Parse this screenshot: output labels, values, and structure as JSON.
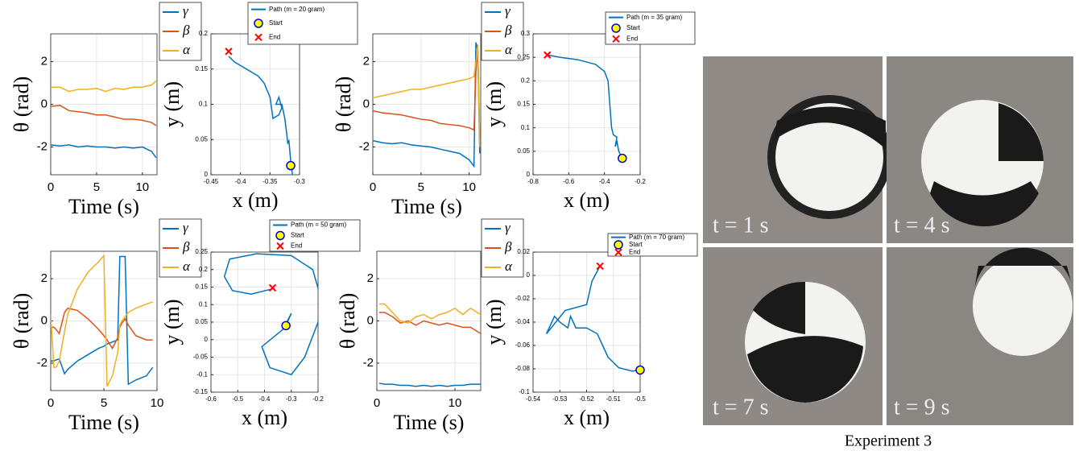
{
  "chart_data": [
    {
      "type": "line",
      "xlabel": "Time (s)",
      "ylabel": "θ (rad)",
      "xlim": [
        0,
        11.6
      ],
      "ylim": [
        -3.3,
        3.3
      ],
      "xticks": [
        0,
        5,
        10
      ],
      "yticks": [
        -2,
        0,
        2
      ],
      "grid": true,
      "x": [
        0,
        1,
        2,
        3,
        4,
        5,
        6,
        7,
        8,
        9,
        10,
        11,
        11.5
      ],
      "series": [
        {
          "name": "γ",
          "color": "#0072BD",
          "values": [
            -1.9,
            -1.95,
            -1.9,
            -2.0,
            -1.95,
            -2.0,
            -2.0,
            -2.05,
            -2.0,
            -2.05,
            -2.0,
            -2.2,
            -2.5
          ]
        },
        {
          "name": "β",
          "color": "#D95319",
          "values": [
            -0.1,
            -0.05,
            -0.3,
            -0.35,
            -0.4,
            -0.5,
            -0.5,
            -0.6,
            -0.7,
            -0.7,
            -0.75,
            -0.85,
            -1.0
          ]
        },
        {
          "name": "α",
          "color": "#EDB120",
          "values": [
            0.8,
            0.8,
            0.6,
            0.7,
            0.7,
            0.75,
            0.6,
            0.75,
            0.7,
            0.8,
            0.8,
            0.9,
            1.1
          ]
        }
      ]
    },
    {
      "type": "line",
      "xlabel": "x (m)",
      "ylabel": "y (m)",
      "xlim": [
        -0.45,
        -0.3
      ],
      "ylim": [
        0,
        0.2
      ],
      "xticks": [
        -0.45,
        -0.4,
        -0.35,
        -0.3
      ],
      "yticks": [
        0,
        0.05,
        0.1,
        0.15,
        0.2
      ],
      "grid": true,
      "series": [
        {
          "name": "Path (m = 20 gram)",
          "color": "#0072BD",
          "marker": "none",
          "x": [
            -0.312,
            -0.315,
            -0.318,
            -0.32,
            -0.322,
            -0.325,
            -0.33,
            -0.34,
            -0.335,
            -0.33,
            -0.335,
            -0.345,
            -0.35,
            -0.36,
            -0.37,
            -0.39,
            -0.41,
            -0.42
          ],
          "values": [
            0.0,
            0.02,
            0.048,
            0.045,
            0.06,
            0.08,
            0.1,
            0.1,
            0.11,
            0.095,
            0.085,
            0.08,
            0.11,
            0.13,
            0.14,
            0.15,
            0.16,
            0.168
          ]
        },
        {
          "name": "Start",
          "color": "#FFFF00",
          "edgecolor": "#0000CD",
          "marker": "circle",
          "x": [
            -0.315
          ],
          "values": [
            0.013
          ]
        },
        {
          "name": "End",
          "color": "#FF0000",
          "marker": "x",
          "x": [
            -0.42
          ],
          "values": [
            0.175
          ]
        }
      ]
    },
    {
      "type": "line",
      "xlabel": "Time (s)",
      "ylabel": "θ (rad)",
      "xlim": [
        0,
        11.2
      ],
      "ylim": [
        -3.3,
        3.3
      ],
      "xticks": [
        0,
        5,
        10
      ],
      "yticks": [
        -2,
        0,
        2
      ],
      "grid": true,
      "x": [
        0,
        1,
        2,
        3,
        4,
        5,
        6,
        7,
        8,
        9,
        10,
        10.5,
        10.7,
        10.9,
        11.1
      ],
      "series": [
        {
          "name": "γ",
          "color": "#0072BD",
          "values": [
            -1.7,
            -1.8,
            -1.85,
            -1.8,
            -1.9,
            -1.95,
            -2.0,
            -2.1,
            -2.2,
            -2.3,
            -2.6,
            -2.9,
            2.9,
            2.5,
            -2.3
          ]
        },
        {
          "name": "β",
          "color": "#D95319",
          "values": [
            -0.3,
            -0.4,
            -0.45,
            -0.5,
            -0.6,
            -0.7,
            -0.75,
            -0.9,
            -0.95,
            -1.0,
            -1.1,
            -1.2,
            1.5,
            2.5,
            -1.5
          ]
        },
        {
          "name": "α",
          "color": "#EDB120",
          "values": [
            0.3,
            0.4,
            0.5,
            0.6,
            0.7,
            0.7,
            0.8,
            0.9,
            1.0,
            1.1,
            1.2,
            1.3,
            2.0,
            2.8,
            -2.0
          ]
        }
      ]
    },
    {
      "type": "line",
      "xlabel": "x (m)",
      "ylabel": "y (m)",
      "xlim": [
        -0.8,
        -0.2
      ],
      "ylim": [
        0,
        0.3
      ],
      "xticks": [
        -0.8,
        -0.6,
        -0.4,
        -0.2
      ],
      "yticks": [
        0,
        0.05,
        0.1,
        0.15,
        0.2,
        0.25,
        0.3
      ],
      "grid": true,
      "series": [
        {
          "name": "Path (m = 35 gram)",
          "color": "#0072BD",
          "marker": "none",
          "x": [
            -0.3,
            -0.32,
            -0.33,
            -0.34,
            -0.33,
            -0.35,
            -0.36,
            -0.37,
            -0.38,
            -0.4,
            -0.45,
            -0.55,
            -0.65,
            -0.72
          ],
          "values": [
            0.035,
            0.05,
            0.07,
            0.06,
            0.08,
            0.085,
            0.1,
            0.15,
            0.2,
            0.22,
            0.235,
            0.245,
            0.25,
            0.255
          ]
        },
        {
          "name": "Start",
          "color": "#FFFF00",
          "edgecolor": "#0000CD",
          "marker": "circle",
          "x": [
            -0.3
          ],
          "values": [
            0.035
          ]
        },
        {
          "name": "End",
          "color": "#FF0000",
          "marker": "x",
          "x": [
            -0.72
          ],
          "values": [
            0.255
          ]
        }
      ]
    },
    {
      "type": "line",
      "xlabel": "Time (s)",
      "ylabel": "θ (rad)",
      "xlim": [
        0,
        10
      ],
      "ylim": [
        -3.3,
        3.3
      ],
      "xticks": [
        0,
        5,
        10
      ],
      "yticks": [
        -2,
        0,
        2
      ],
      "grid": true,
      "x": [
        0,
        0.3,
        0.5,
        0.8,
        1.3,
        1.6,
        2.5,
        3.5,
        4.5,
        5.0,
        5.3,
        5.8,
        6.3,
        6.5,
        6.7,
        7.0,
        7.3,
        8,
        9,
        9.6
      ],
      "series": [
        {
          "name": "γ",
          "color": "#0072BD",
          "values": [
            -1.9,
            -1.9,
            -1.85,
            -1.8,
            -2.5,
            -2.3,
            -1.9,
            -1.6,
            -1.3,
            -1.2,
            -1.1,
            -1.0,
            -0.9,
            3.05,
            3.05,
            3.05,
            -3.0,
            -2.8,
            -2.6,
            -2.2
          ]
        },
        {
          "name": "β",
          "color": "#D95319",
          "values": [
            -0.3,
            -0.3,
            -0.4,
            -0.6,
            0.4,
            0.6,
            0.5,
            0.1,
            -0.4,
            -0.7,
            -0.9,
            -1.3,
            -0.8,
            -0.3,
            -0.1,
            0.1,
            -0.2,
            -0.7,
            -0.9,
            -0.9
          ]
        },
        {
          "name": "α",
          "color": "#EDB120",
          "values": [
            0.3,
            -2.2,
            -2.2,
            -1.9,
            -0.5,
            0.3,
            1.5,
            2.3,
            2.8,
            3.1,
            -3.1,
            -2.6,
            -1.5,
            -0.2,
            0.0,
            0.2,
            0.4,
            0.6,
            0.8,
            0.9
          ]
        }
      ]
    },
    {
      "type": "line",
      "xlabel": "x (m)",
      "ylabel": "y (m)",
      "xlim": [
        -0.6,
        -0.2
      ],
      "ylim": [
        -0.15,
        0.25
      ],
      "xticks": [
        -0.6,
        -0.5,
        -0.4,
        -0.3,
        -0.2
      ],
      "yticks": [
        -0.15,
        -0.1,
        -0.05,
        0,
        0.05,
        0.1,
        0.15,
        0.2,
        0.25
      ],
      "grid": true,
      "series": [
        {
          "name": "Path (m = 50 gram)",
          "color": "#0072BD",
          "marker": "none",
          "x": [
            -0.32,
            -0.3,
            -0.33,
            -0.41,
            -0.38,
            -0.3,
            -0.25,
            -0.2,
            -0.19,
            -0.22,
            -0.3,
            -0.43,
            -0.53,
            -0.55,
            -0.52,
            -0.45,
            -0.37
          ],
          "values": [
            0.04,
            0.075,
            0.03,
            -0.02,
            -0.08,
            -0.1,
            -0.05,
            0.05,
            0.12,
            0.2,
            0.24,
            0.245,
            0.23,
            0.18,
            0.14,
            0.13,
            0.145
          ]
        },
        {
          "name": "Start",
          "color": "#FFFF00",
          "edgecolor": "#0000CD",
          "marker": "circle",
          "x": [
            -0.32
          ],
          "values": [
            0.04
          ]
        },
        {
          "name": "End",
          "color": "#FF0000",
          "marker": "x",
          "x": [
            -0.37
          ],
          "values": [
            0.148
          ]
        }
      ]
    },
    {
      "type": "line",
      "xlabel": "Time (s)",
      "ylabel": "θ (rad)",
      "xlim": [
        0,
        13.3
      ],
      "ylim": [
        -3.3,
        3.3
      ],
      "xticks": [
        0,
        10
      ],
      "yticks": [
        -2,
        0,
        2
      ],
      "grid": true,
      "x": [
        0.3,
        1,
        2,
        3,
        4,
        5,
        6,
        7,
        8,
        9,
        10,
        11,
        12,
        13.3
      ],
      "series": [
        {
          "name": "γ",
          "color": "#0072BD",
          "values": [
            -2.95,
            -3.0,
            -3.0,
            -3.05,
            -3.05,
            -3.1,
            -3.05,
            -3.1,
            -3.05,
            -3.1,
            -3.05,
            -3.05,
            -3.0,
            -3.0
          ]
        },
        {
          "name": "β",
          "color": "#D95319",
          "values": [
            0.4,
            0.4,
            0.2,
            -0.1,
            0.0,
            -0.2,
            0.0,
            -0.1,
            -0.2,
            -0.1,
            -0.2,
            -0.3,
            -0.3,
            -0.6
          ]
        },
        {
          "name": "α",
          "color": "#EDB120",
          "values": [
            0.8,
            0.8,
            0.4,
            0.0,
            -0.1,
            0.2,
            0.3,
            0.1,
            0.3,
            0.4,
            0.6,
            0.3,
            0.6,
            0.3
          ]
        }
      ]
    },
    {
      "type": "line",
      "xlabel": "x (m)",
      "ylabel": "y (m)",
      "xlim": [
        -0.54,
        -0.5
      ],
      "ylim": [
        -0.1,
        0.02
      ],
      "xticks": [
        -0.54,
        -0.53,
        -0.52,
        -0.51,
        -0.5
      ],
      "yticks": [
        -0.1,
        -0.08,
        -0.06,
        -0.04,
        -0.02,
        0,
        0.02
      ],
      "grid": true,
      "series": [
        {
          "name": "Path (m = 70 gram)",
          "color": "#0072BD",
          "marker": "none",
          "x": [
            -0.5,
            -0.503,
            -0.508,
            -0.512,
            -0.514,
            -0.516,
            -0.52,
            -0.524,
            -0.526,
            -0.527,
            -0.53,
            -0.532,
            -0.535,
            -0.528,
            -0.52,
            -0.518,
            -0.515
          ],
          "values": [
            -0.081,
            -0.082,
            -0.079,
            -0.07,
            -0.06,
            -0.05,
            -0.045,
            -0.045,
            -0.035,
            -0.045,
            -0.04,
            -0.035,
            -0.05,
            -0.03,
            -0.025,
            -0.005,
            0.008
          ]
        },
        {
          "name": "Start",
          "color": "#FFFF00",
          "edgecolor": "#0000CD",
          "marker": "circle",
          "x": [
            -0.5
          ],
          "values": [
            -0.081
          ]
        },
        {
          "name": "End",
          "color": "#FF0000",
          "marker": "x",
          "x": [
            -0.515
          ],
          "values": [
            0.008
          ]
        }
      ]
    }
  ],
  "photos": {
    "panels": [
      {
        "label": "t = 1 s"
      },
      {
        "label": "t = 4 s"
      },
      {
        "label": "t = 7 s"
      },
      {
        "label": "t = 9 s"
      }
    ],
    "caption": "Experiment 3"
  }
}
